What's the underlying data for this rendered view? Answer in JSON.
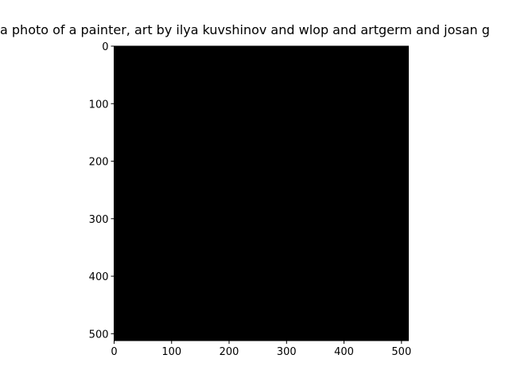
{
  "chart_data": {
    "type": "heatmap",
    "title": "a photo of a painter,  art by ilya kuvshinov and wlop and artgerm and josan g",
    "xlabel": "",
    "ylabel": "",
    "image_size": [
      512,
      512
    ],
    "xlim": [
      0,
      512
    ],
    "ylim": [
      512,
      0
    ],
    "xticks": [
      0,
      100,
      200,
      300,
      400,
      500
    ],
    "yticks": [
      0,
      100,
      200,
      300,
      400,
      500
    ],
    "fill_color": "#000000",
    "grid": false,
    "legend": "none"
  }
}
